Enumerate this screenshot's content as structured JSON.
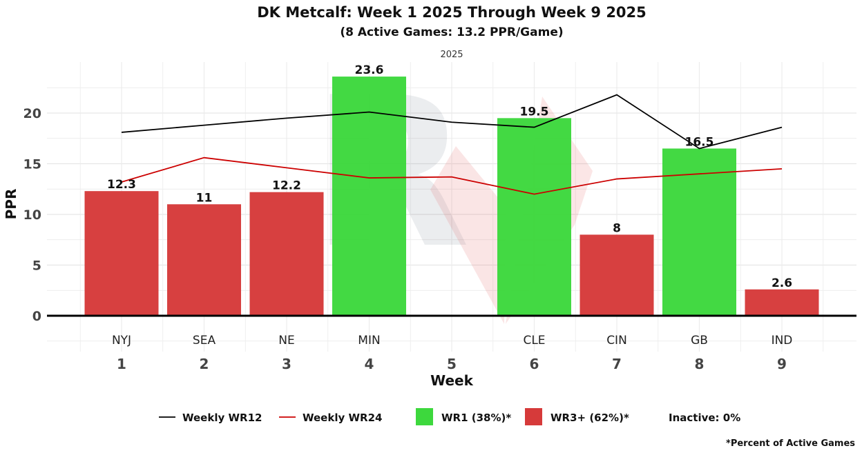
{
  "chart_data": {
    "type": "bar",
    "title": "DK Metcalf: Week 1 2025 Through Week 9 2025",
    "subtitle": "(8 Active Games: 13.2 PPR/Game)",
    "facet_label": "2025",
    "xlabel": "Week",
    "ylabel": "PPR",
    "ylim": [
      -3.5,
      25
    ],
    "yticks": [
      0,
      5,
      10,
      15,
      20
    ],
    "weeks": [
      1,
      2,
      3,
      4,
      5,
      6,
      7,
      8,
      9
    ],
    "opponents": [
      "NYJ",
      "SEA",
      "NE",
      "MIN",
      "",
      "CLE",
      "CIN",
      "GB",
      "IND"
    ],
    "values": [
      12.3,
      11,
      12.2,
      23.6,
      null,
      19.5,
      8,
      16.5,
      2.6
    ],
    "value_labels": [
      "12.3",
      "11",
      "12.2",
      "23.6",
      "",
      "19.5",
      "8",
      "16.5",
      "2.6"
    ],
    "bar_tiers": [
      "WR3+",
      "WR3+",
      "WR3+",
      "WR1",
      null,
      "WR1",
      "WR3+",
      "WR1",
      "WR3+"
    ],
    "series": [
      {
        "name": "Weekly WR12",
        "color": "#000000",
        "values": [
          18.1,
          18.8,
          19.5,
          20.1,
          19.1,
          18.6,
          21.8,
          16.5,
          18.6
        ]
      },
      {
        "name": "Weekly WR24",
        "color": "#cc0000",
        "values": [
          13.2,
          15.6,
          14.6,
          13.6,
          13.7,
          12.0,
          13.5,
          14.0,
          14.5
        ]
      }
    ],
    "colors": {
      "WR1": "#3dd83d",
      "WR3+": "#d63a3a"
    },
    "grid": true,
    "legend": {
      "placement": "bottom",
      "items": [
        {
          "label": "Weekly WR12",
          "kind": "line",
          "color": "#000000"
        },
        {
          "label": "Weekly WR24",
          "kind": "line",
          "color": "#cc0000"
        },
        {
          "label": "WR1 (38%)*",
          "kind": "box",
          "color": "#3dd83d"
        },
        {
          "label": "WR3+ (62%)*",
          "kind": "box",
          "color": "#d63a3a"
        },
        {
          "label": "Inactive: 0%",
          "kind": "text"
        }
      ]
    },
    "footnote": "*Percent of Active Games"
  }
}
